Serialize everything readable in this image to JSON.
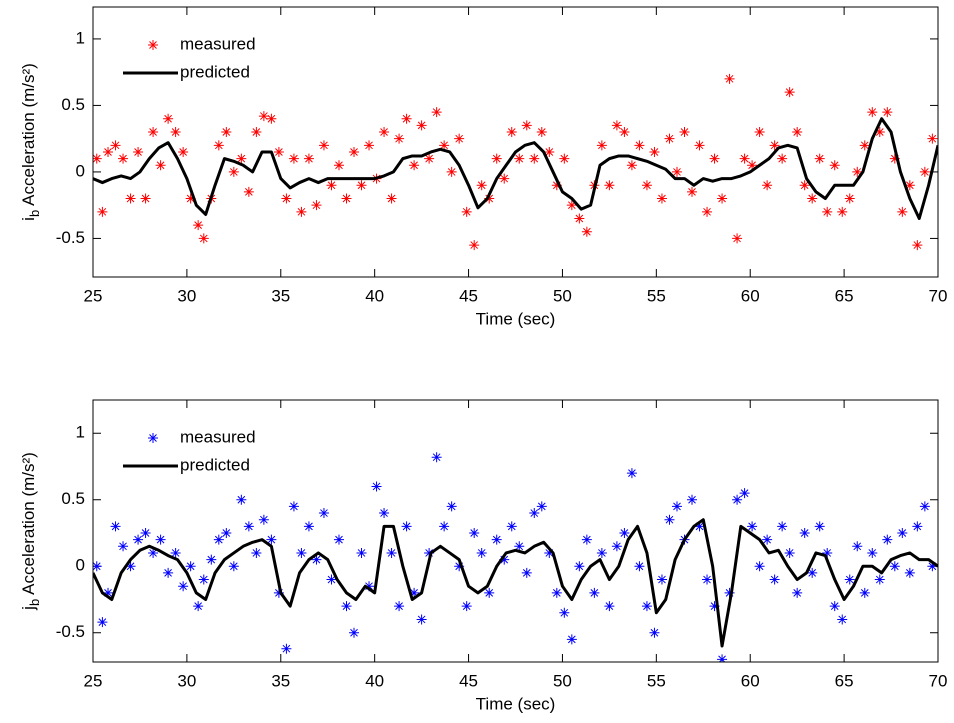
{
  "chart_data": [
    {
      "type": "line",
      "xlabel": "Time (sec)",
      "ylabel": {
        "symbol": "i",
        "subscript": "b",
        "text": "Acceleration (m/s²)"
      },
      "xlim": [
        25,
        70
      ],
      "ylim": [
        -0.79,
        1.24
      ],
      "xticks": [
        25,
        30,
        35,
        40,
        45,
        50,
        55,
        60,
        65,
        70
      ],
      "yticks": [
        -0.5,
        0,
        0.5,
        1
      ],
      "grid": false,
      "legend": "upper left",
      "series": [
        {
          "name": "measured",
          "color": "#ff0000",
          "mode": "markers",
          "x": [
            25.2,
            25.5,
            25.8,
            26.2,
            26.6,
            27.0,
            27.4,
            27.8,
            28.2,
            28.6,
            29.0,
            29.4,
            29.8,
            30.2,
            30.6,
            30.9,
            31.3,
            31.7,
            32.1,
            32.5,
            32.9,
            33.3,
            33.7,
            34.1,
            34.5,
            34.9,
            35.3,
            35.7,
            36.1,
            36.5,
            36.9,
            37.3,
            37.7,
            38.1,
            38.5,
            38.9,
            39.3,
            39.7,
            40.1,
            40.5,
            40.9,
            41.3,
            41.7,
            42.1,
            42.5,
            42.9,
            43.3,
            43.7,
            44.1,
            44.5,
            44.9,
            45.3,
            45.7,
            46.1,
            46.5,
            46.9,
            47.3,
            47.7,
            48.1,
            48.5,
            48.9,
            49.3,
            49.7,
            50.1,
            50.5,
            50.9,
            51.3,
            51.7,
            52.1,
            52.5,
            52.9,
            53.3,
            53.7,
            54.1,
            54.5,
            54.9,
            55.3,
            55.7,
            56.1,
            56.5,
            56.9,
            57.3,
            57.7,
            58.1,
            58.5,
            58.9,
            59.3,
            59.7,
            60.1,
            60.5,
            60.9,
            61.3,
            61.7,
            62.1,
            62.5,
            62.9,
            63.3,
            63.7,
            64.1,
            64.5,
            64.9,
            65.3,
            65.7,
            66.1,
            66.5,
            66.9,
            67.3,
            67.7,
            68.1,
            68.5,
            68.9,
            69.3,
            69.7
          ],
          "values": [
            0.1,
            -0.3,
            0.15,
            0.2,
            0.1,
            -0.2,
            0.15,
            -0.2,
            0.3,
            0.05,
            0.4,
            0.3,
            0.15,
            -0.2,
            -0.4,
            -0.5,
            -0.2,
            0.2,
            0.3,
            0.0,
            0.1,
            -0.15,
            0.3,
            0.42,
            0.4,
            0.15,
            -0.2,
            0.1,
            -0.3,
            0.1,
            -0.25,
            0.2,
            -0.1,
            0.05,
            -0.2,
            0.15,
            -0.1,
            0.2,
            -0.05,
            0.3,
            -0.2,
            0.25,
            0.4,
            0.05,
            0.35,
            0.1,
            0.45,
            0.2,
            0.0,
            0.25,
            -0.3,
            -0.55,
            -0.1,
            -0.2,
            0.1,
            -0.05,
            0.3,
            0.1,
            0.35,
            0.1,
            0.3,
            0.15,
            -0.1,
            0.1,
            -0.25,
            -0.35,
            -0.45,
            -0.1,
            0.2,
            -0.1,
            0.35,
            0.3,
            0.05,
            0.2,
            -0.1,
            0.15,
            -0.2,
            0.25,
            0.0,
            0.3,
            -0.15,
            0.2,
            -0.3,
            0.1,
            -0.2,
            0.7,
            -0.5,
            0.1,
            0.05,
            0.3,
            -0.1,
            0.2,
            0.1,
            0.6,
            0.3,
            -0.1,
            -0.2,
            0.1,
            -0.3,
            0.05,
            -0.3,
            -0.2,
            0.0,
            0.2,
            0.45,
            0.3,
            0.45,
            0.1,
            -0.3,
            -0.1,
            -0.55,
            0.0,
            0.25
          ]
        },
        {
          "name": "predicted",
          "color": "#000000",
          "mode": "lines",
          "x": [
            25,
            25.5,
            26,
            26.5,
            27,
            27.5,
            28,
            28.5,
            29,
            29.5,
            30,
            30.5,
            31,
            31.5,
            32,
            32.5,
            33,
            33.5,
            34,
            34.5,
            35,
            35.5,
            36,
            36.5,
            37,
            37.5,
            38,
            38.5,
            39,
            39.5,
            40,
            40.5,
            41,
            41.5,
            42,
            42.5,
            43,
            43.5,
            44,
            44.5,
            45,
            45.5,
            46,
            46.5,
            47,
            47.5,
            48,
            48.5,
            49,
            49.5,
            50,
            50.5,
            51,
            51.5,
            52,
            52.5,
            53,
            53.5,
            54,
            54.5,
            55,
            55.5,
            56,
            56.5,
            57,
            57.5,
            58,
            58.5,
            59,
            59.5,
            60,
            60.5,
            61,
            61.5,
            62,
            62.5,
            63,
            63.5,
            64,
            64.5,
            65,
            65.5,
            66,
            66.5,
            67,
            67.5,
            68,
            68.5,
            69,
            69.5,
            70
          ],
          "values": [
            -0.05,
            -0.08,
            -0.05,
            -0.03,
            -0.05,
            0.0,
            0.1,
            0.18,
            0.22,
            0.1,
            -0.05,
            -0.25,
            -0.32,
            -0.1,
            0.1,
            0.08,
            0.05,
            0.0,
            0.15,
            0.15,
            -0.05,
            -0.12,
            -0.08,
            -0.05,
            -0.08,
            -0.05,
            -0.05,
            -0.05,
            -0.05,
            -0.05,
            -0.05,
            -0.03,
            0.0,
            0.1,
            0.12,
            0.12,
            0.15,
            0.17,
            0.15,
            0.05,
            -0.1,
            -0.27,
            -0.2,
            -0.05,
            0.05,
            0.15,
            0.2,
            0.22,
            0.15,
            0.0,
            -0.15,
            -0.2,
            -0.28,
            -0.25,
            0.05,
            0.1,
            0.12,
            0.12,
            0.1,
            0.08,
            0.05,
            0.02,
            -0.05,
            -0.05,
            -0.1,
            -0.05,
            -0.07,
            -0.05,
            -0.05,
            -0.03,
            0.0,
            0.05,
            0.1,
            0.18,
            0.2,
            0.18,
            -0.05,
            -0.15,
            -0.2,
            -0.1,
            -0.1,
            -0.1,
            0.0,
            0.25,
            0.4,
            0.3,
            0.0,
            -0.2,
            -0.35,
            -0.1,
            0.2
          ]
        }
      ]
    },
    {
      "type": "line",
      "xlabel": "Time (sec)",
      "ylabel": {
        "symbol": "j",
        "subscript": "b",
        "text": "Acceleration (m/s²)"
      },
      "xlim": [
        25,
        70
      ],
      "ylim": [
        -0.72,
        1.25
      ],
      "xticks": [
        25,
        30,
        35,
        40,
        45,
        50,
        55,
        60,
        65,
        70
      ],
      "yticks": [
        -0.5,
        0,
        0.5,
        1
      ],
      "grid": false,
      "legend": "upper left",
      "series": [
        {
          "name": "measured",
          "color": "#0000ff",
          "mode": "markers",
          "x": [
            25.2,
            25.5,
            25.8,
            26.2,
            26.6,
            27.0,
            27.4,
            27.8,
            28.2,
            28.6,
            29.0,
            29.4,
            29.8,
            30.2,
            30.6,
            30.9,
            31.3,
            31.7,
            32.1,
            32.5,
            32.9,
            33.3,
            33.7,
            34.1,
            34.5,
            34.9,
            35.3,
            35.7,
            36.1,
            36.5,
            36.9,
            37.3,
            37.7,
            38.1,
            38.5,
            38.9,
            39.3,
            39.7,
            40.1,
            40.5,
            40.9,
            41.3,
            41.7,
            42.1,
            42.5,
            42.9,
            43.3,
            43.7,
            44.1,
            44.5,
            44.9,
            45.3,
            45.7,
            46.1,
            46.5,
            46.9,
            47.3,
            47.7,
            48.1,
            48.5,
            48.9,
            49.3,
            49.7,
            50.1,
            50.5,
            50.9,
            51.3,
            51.7,
            52.1,
            52.5,
            52.9,
            53.3,
            53.7,
            54.1,
            54.5,
            54.9,
            55.3,
            55.7,
            56.1,
            56.5,
            56.9,
            57.3,
            57.7,
            58.1,
            58.5,
            58.9,
            59.3,
            59.7,
            60.1,
            60.5,
            60.9,
            61.3,
            61.7,
            62.1,
            62.5,
            62.9,
            63.3,
            63.7,
            64.1,
            64.5,
            64.9,
            65.3,
            65.7,
            66.1,
            66.5,
            66.9,
            67.3,
            67.7,
            68.1,
            68.5,
            68.9,
            69.3,
            69.7
          ],
          "values": [
            0.0,
            -0.42,
            -0.2,
            0.3,
            0.15,
            0.0,
            0.2,
            0.25,
            0.1,
            0.2,
            -0.05,
            0.1,
            -0.15,
            0.0,
            -0.3,
            -0.1,
            0.05,
            0.2,
            0.25,
            0.0,
            0.5,
            0.3,
            0.1,
            0.35,
            0.2,
            -0.2,
            -0.62,
            0.45,
            0.1,
            0.3,
            0.05,
            0.4,
            -0.1,
            0.2,
            -0.3,
            -0.5,
            0.1,
            -0.15,
            0.6,
            0.4,
            0.1,
            -0.3,
            0.3,
            -0.2,
            -0.4,
            0.1,
            0.82,
            0.3,
            0.45,
            0.0,
            -0.3,
            0.25,
            0.1,
            -0.2,
            0.2,
            0.05,
            0.3,
            0.15,
            -0.05,
            0.4,
            0.45,
            0.1,
            -0.2,
            -0.35,
            -0.55,
            0.0,
            0.2,
            -0.2,
            0.1,
            -0.3,
            0.15,
            0.25,
            0.7,
            0.0,
            -0.3,
            -0.5,
            -0.1,
            0.35,
            0.45,
            0.2,
            0.5,
            0.3,
            -0.1,
            -0.3,
            -0.7,
            -0.2,
            0.5,
            0.55,
            0.3,
            0.0,
            0.2,
            -0.1,
            0.3,
            0.1,
            -0.2,
            0.25,
            -0.05,
            0.3,
            0.1,
            -0.3,
            -0.4,
            -0.1,
            0.15,
            -0.2,
            0.1,
            -0.1,
            0.2,
            0.0,
            0.25,
            -0.05,
            0.3,
            0.45,
            0.0
          ]
        },
        {
          "name": "predicted",
          "color": "#000000",
          "mode": "lines",
          "x": [
            25,
            25.5,
            26,
            26.5,
            27,
            27.5,
            28,
            28.5,
            29,
            29.5,
            30,
            30.5,
            31,
            31.5,
            32,
            32.5,
            33,
            33.5,
            34,
            34.5,
            35,
            35.5,
            36,
            36.5,
            37,
            37.5,
            38,
            38.5,
            39,
            39.5,
            40,
            40.5,
            41,
            41.5,
            42,
            42.5,
            43,
            43.5,
            44,
            44.5,
            45,
            45.5,
            46,
            46.5,
            47,
            47.5,
            48,
            48.5,
            49,
            49.5,
            50,
            50.5,
            51,
            51.5,
            52,
            52.5,
            53,
            53.5,
            54,
            54.5,
            55,
            55.5,
            56,
            56.5,
            57,
            57.5,
            58,
            58.5,
            59,
            59.5,
            60,
            60.5,
            61,
            61.5,
            62,
            62.5,
            63,
            63.5,
            64,
            64.5,
            65,
            65.5,
            66,
            66.5,
            67,
            67.5,
            68,
            68.5,
            69,
            69.5,
            70
          ],
          "values": [
            -0.05,
            -0.2,
            -0.25,
            -0.05,
            0.05,
            0.12,
            0.15,
            0.12,
            0.08,
            0.05,
            -0.05,
            -0.2,
            -0.25,
            -0.05,
            0.05,
            0.1,
            0.15,
            0.18,
            0.2,
            0.15,
            -0.2,
            -0.3,
            -0.05,
            0.05,
            0.1,
            0.05,
            -0.1,
            -0.2,
            -0.25,
            -0.15,
            -0.2,
            0.3,
            0.3,
            0.0,
            -0.25,
            -0.2,
            0.1,
            0.15,
            0.1,
            0.05,
            -0.15,
            -0.2,
            -0.15,
            0.0,
            0.1,
            0.12,
            0.1,
            0.15,
            0.18,
            0.1,
            -0.15,
            -0.25,
            -0.1,
            0.0,
            0.05,
            -0.1,
            0.0,
            0.2,
            0.3,
            0.1,
            -0.35,
            -0.25,
            0.05,
            0.2,
            0.3,
            0.35,
            0.0,
            -0.6,
            -0.2,
            0.3,
            0.25,
            0.2,
            0.1,
            0.12,
            0.0,
            -0.1,
            -0.05,
            0.1,
            0.08,
            -0.1,
            -0.25,
            -0.15,
            0.0,
            0.0,
            -0.05,
            0.05,
            0.08,
            0.1,
            0.05,
            0.05,
            0.0
          ]
        }
      ]
    }
  ]
}
